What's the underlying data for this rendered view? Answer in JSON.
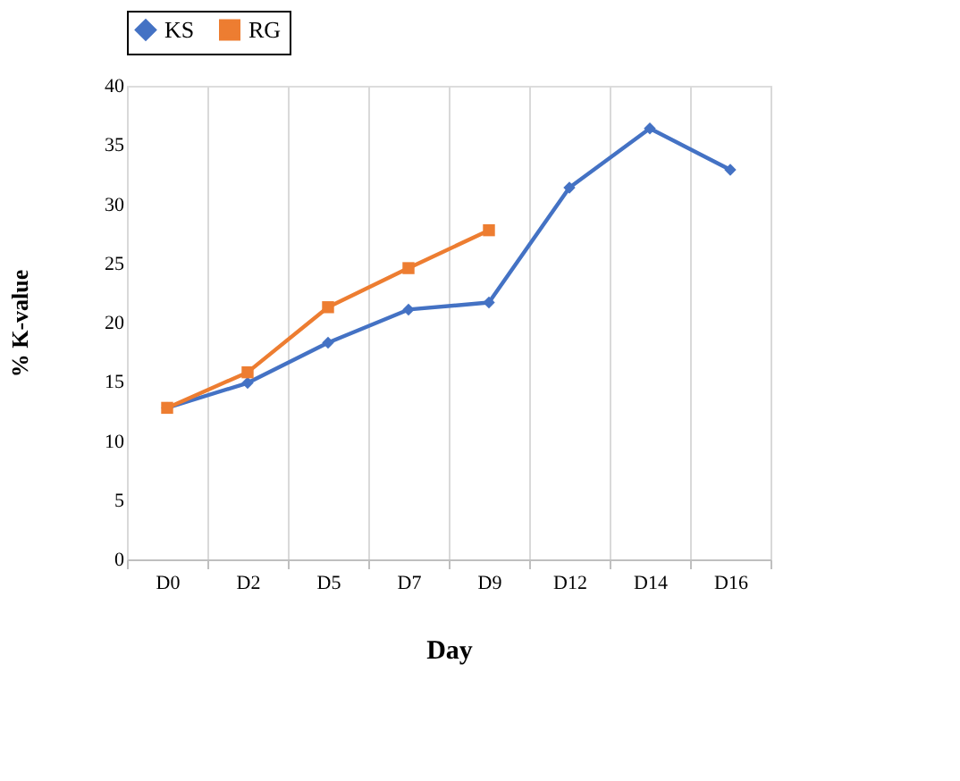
{
  "chart_data": {
    "type": "line",
    "xlabel": "Day",
    "ylabel": "% K-value",
    "categories": [
      "D0",
      "D2",
      "D5",
      "D7",
      "D9",
      "D12",
      "D14",
      "D16"
    ],
    "series": [
      {
        "name": "KS",
        "color": "#4472c4",
        "marker": "diamond",
        "values": [
          12.8,
          14.9,
          18.3,
          21.1,
          21.7,
          31.4,
          36.4,
          32.9
        ]
      },
      {
        "name": "RG",
        "color": "#ed7d31",
        "marker": "square",
        "values": [
          12.8,
          15.8,
          21.3,
          24.6,
          27.8,
          null,
          null,
          null
        ]
      }
    ],
    "ylim": [
      0,
      40
    ],
    "yticks": [
      0,
      5,
      10,
      15,
      20,
      25,
      30,
      35,
      40
    ],
    "grid": "x",
    "legend": "top"
  }
}
